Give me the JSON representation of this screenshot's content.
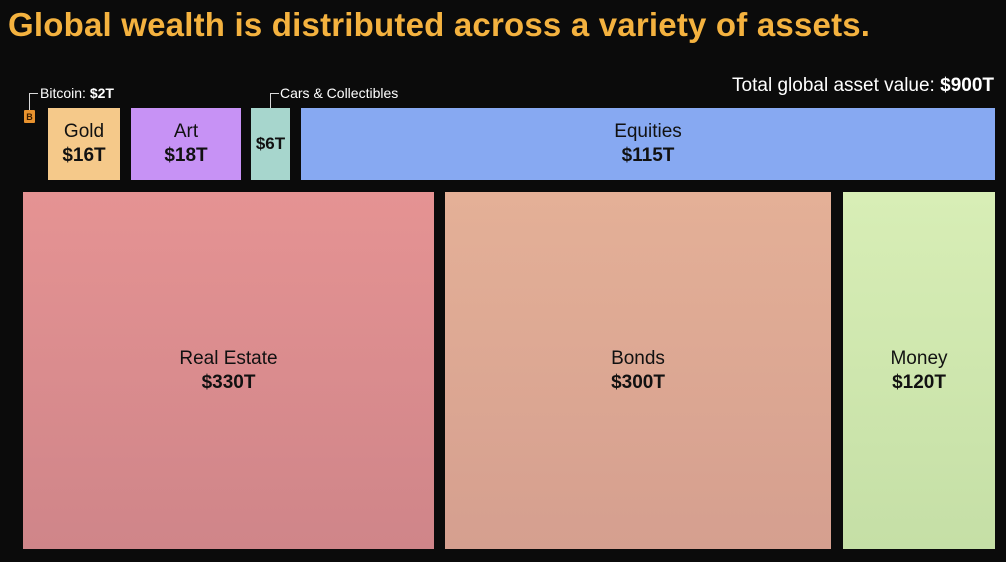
{
  "title": "Global wealth is distributed across a variety of assets.",
  "total": {
    "label": "Total global asset value:",
    "value": "$900T"
  },
  "bitcoin_label": {
    "name": "Bitcoin:",
    "value": "$2T"
  },
  "cars_label": "Cars & Collectibles",
  "bitcoin_icon": {
    "name": "bitcoin-icon",
    "glyph": "B",
    "color": "#e8922e"
  },
  "chart_data": {
    "type": "treemap",
    "title": "Global wealth is distributed across a variety of assets.",
    "total": 900,
    "unit": "$T",
    "items": [
      {
        "name": "Bitcoin",
        "value": 2,
        "display": "$2T",
        "color": "#e8922e"
      },
      {
        "name": "Gold",
        "value": 16,
        "display": "$16T",
        "color": "#f5c98a"
      },
      {
        "name": "Art",
        "value": 18,
        "display": "$18T",
        "color": "#c792f5"
      },
      {
        "name": "Cars & Collectibles",
        "value": 6,
        "display": "$6T",
        "color": "#a7d6cd"
      },
      {
        "name": "Equities",
        "value": 115,
        "display": "$115T",
        "color": "#87a9f2"
      },
      {
        "name": "Real Estate",
        "value": 330,
        "display": "$330T",
        "color": "#e39090"
      },
      {
        "name": "Bonds",
        "value": 300,
        "display": "$300T",
        "color": "#e2ac8f"
      },
      {
        "name": "Money",
        "value": 120,
        "display": "$120T",
        "color": "#d4ecb2"
      }
    ]
  },
  "tiles": {
    "gold": {
      "label": "Gold",
      "value": "$16T"
    },
    "art": {
      "label": "Art",
      "value": "$18T"
    },
    "cars": {
      "label": "",
      "value": "$6T"
    },
    "equities": {
      "label": "Equities",
      "value": "$115T"
    },
    "real_estate": {
      "label": "Real Estate",
      "value": "$330T"
    },
    "bonds": {
      "label": "Bonds",
      "value": "$300T"
    },
    "money": {
      "label": "Money",
      "value": "$120T"
    }
  }
}
